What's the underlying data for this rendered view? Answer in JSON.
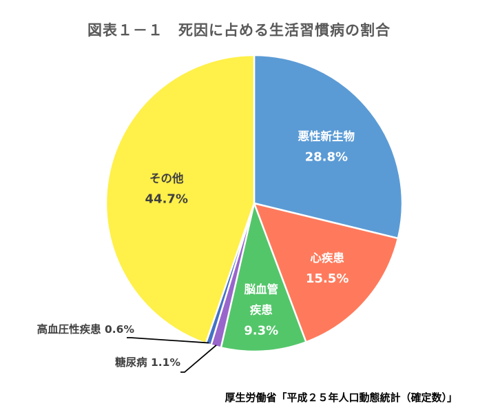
{
  "chart_data": {
    "type": "pie",
    "title": "図表１－１　死因に占める生活習慣病の割合",
    "source": "厚生労働省「平成２５年人口動態統計（確定数）」",
    "slices": [
      {
        "label": "悪性新生物",
        "label_lines": [
          "悪性新生物"
        ],
        "value": 28.8,
        "display": "28.8%",
        "color": "#5B9BD5",
        "text_color": "#ffffff"
      },
      {
        "label": "心疾患",
        "label_lines": [
          "心疾患"
        ],
        "value": 15.5,
        "display": "15.5%",
        "color": "#FF7A5C",
        "text_color": "#ffffff"
      },
      {
        "label": "脳血管疾患",
        "label_lines": [
          "脳血管",
          "疾患"
        ],
        "value": 9.3,
        "display": "9.3%",
        "color": "#53C66A",
        "text_color": "#ffffff"
      },
      {
        "label": "糖尿病",
        "label_lines": [
          "糖尿病"
        ],
        "value": 1.1,
        "display": "1.1%",
        "color": "#9966CC",
        "text_color": "#404040"
      },
      {
        "label": "高血圧性疾患",
        "label_lines": [
          "高血圧性疾患"
        ],
        "value": 0.6,
        "display": "0.6%",
        "color": "#4472C4",
        "text_color": "#404040"
      },
      {
        "label": "その他",
        "label_lines": [
          "その他"
        ],
        "value": 44.7,
        "display": "44.7%",
        "color": "#FFF04A",
        "text_color": "#404040"
      }
    ]
  }
}
